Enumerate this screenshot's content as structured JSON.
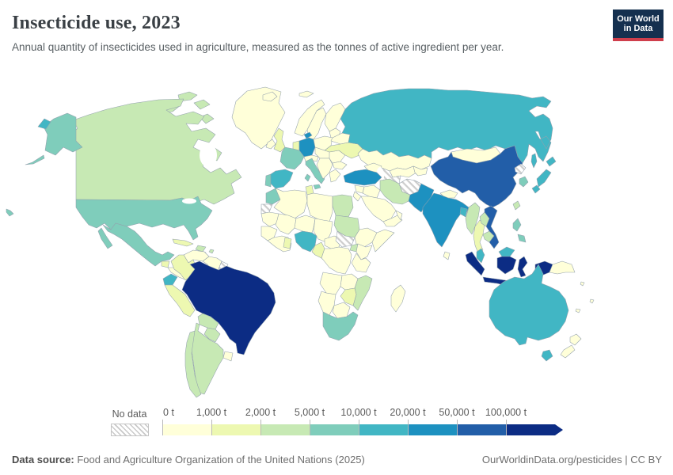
{
  "header": {
    "title": "Insecticide use, 2023",
    "subtitle": "Annual quantity of insecticides used in agriculture, measured as the tonnes of active ingredient per year.",
    "logo_line1": "Our World",
    "logo_line2": "in Data",
    "logo_bg": "#15304f",
    "logo_accent": "#cf3e4c"
  },
  "legend": {
    "no_data_label": "No data",
    "tick_labels": [
      "0 t",
      "1,000 t",
      "2,000 t",
      "5,000 t",
      "10,000 t",
      "20,000 t",
      "50,000 t",
      "100,000 t"
    ],
    "bin_colors": [
      "#ffffd9",
      "#edf8b1",
      "#c7e9b4",
      "#7fcdbb",
      "#41b6c4",
      "#1d91c0",
      "#225ea8",
      "#0c2c84"
    ]
  },
  "footer": {
    "source_label": "Data source:",
    "source_text": " Food and Agriculture Organization of the United Nations (2025)",
    "link_text": "OurWorldinData.org/pesticides",
    "license_sep": " | ",
    "license": "CC BY"
  },
  "chart_data": {
    "type": "choropleth_map",
    "title": "Insecticide use, 2023",
    "unit": "tonnes of active ingredient per year",
    "bins": [
      "0 – 1,000 t",
      "1,000 – 2,000 t",
      "2,000 – 5,000 t",
      "5,000 – 10,000 t",
      "10,000 – 20,000 t",
      "20,000 – 50,000 t",
      "50,000 – 100,000 t",
      "100,000 t and over"
    ],
    "no_data_bin": "No data",
    "regions": [
      [
        "greenland",
        "Greenland",
        0
      ],
      [
        "iceland",
        "Iceland",
        0
      ],
      [
        "svalbard",
        "Svalbard",
        0
      ],
      [
        "norway",
        "Norway",
        0
      ],
      [
        "sweden",
        "Sweden",
        0
      ],
      [
        "finland",
        "Finland",
        0
      ],
      [
        "baltics",
        "Baltic states",
        0
      ],
      [
        "ireland",
        "Ireland",
        0
      ],
      [
        "uk",
        "United Kingdom",
        1
      ],
      [
        "low-countries",
        "Netherlands & Belgium",
        1
      ],
      [
        "denmark",
        "Denmark",
        5
      ],
      [
        "germany",
        "Germany",
        5
      ],
      [
        "poland",
        "Poland",
        0
      ],
      [
        "czech-hungary",
        "Central Europe",
        0
      ],
      [
        "alps",
        "Switzerland & Austria",
        0
      ],
      [
        "france",
        "France",
        3
      ],
      [
        "iberia",
        "Spain",
        4
      ],
      [
        "portugal",
        "Portugal",
        3
      ],
      [
        "italy",
        "Italy",
        3
      ],
      [
        "balkans",
        "Balkans",
        0
      ],
      [
        "romania",
        "Romania",
        0
      ],
      [
        "bulgaria",
        "Bulgaria",
        0
      ],
      [
        "greece",
        "Greece",
        0
      ],
      [
        "belarus",
        "Belarus",
        0
      ],
      [
        "ukraine",
        "Ukraine",
        1
      ],
      [
        "russia",
        "Russia",
        4
      ],
      [
        "russia-chukotka",
        "Russia (Chukotka)",
        4
      ],
      [
        "sakhalin",
        "Russia (Sakhalin)",
        4
      ],
      [
        "kazakhstan",
        "Kazakhstan",
        0
      ],
      [
        "uzbekistan",
        "Uzbekistan",
        0
      ],
      [
        "turkmenistan",
        "Turkmenistan",
        "nd"
      ],
      [
        "kyrgyzstan",
        "Kyrgyzstan & Tajikistan",
        0
      ],
      [
        "afghanistan",
        "Afghanistan",
        "nd"
      ],
      [
        "pakistan",
        "Pakistan",
        5
      ],
      [
        "caucasus",
        "Caucasus",
        0
      ],
      [
        "turkey",
        "Turkey",
        5
      ],
      [
        "syria",
        "Syria",
        0
      ],
      [
        "iraq",
        "Iraq",
        0
      ],
      [
        "jordan",
        "Jordan & Israel",
        0
      ],
      [
        "iran",
        "Iran",
        2
      ],
      [
        "saudi",
        "Saudi Arabia",
        0
      ],
      [
        "yemen",
        "Yemen",
        0
      ],
      [
        "oman",
        "Oman",
        0
      ],
      [
        "india",
        "India",
        5
      ],
      [
        "sri-lanka",
        "Sri Lanka",
        0
      ],
      [
        "nepal",
        "Nepal",
        0
      ],
      [
        "bangladesh",
        "Bangladesh",
        4
      ],
      [
        "china",
        "China",
        6
      ],
      [
        "mongolia",
        "Mongolia",
        0
      ],
      [
        "myanmar",
        "Myanmar",
        2
      ],
      [
        "thailand",
        "Thailand",
        1
      ],
      [
        "laos",
        "Laos",
        2
      ],
      [
        "cambodia",
        "Cambodia",
        2
      ],
      [
        "vietnam",
        "Vietnam",
        6
      ],
      [
        "malaysia",
        "Malaysia",
        4
      ],
      [
        "indonesia",
        "Indonesia",
        7
      ],
      [
        "png",
        "Papua New Guinea",
        0
      ],
      [
        "philippines",
        "Philippines",
        3
      ],
      [
        "taiwan",
        "Taiwan",
        2
      ],
      [
        "japan",
        "Japan",
        4
      ],
      [
        "south-korea",
        "South Korea",
        3
      ],
      [
        "north-korea",
        "North Korea",
        "nd"
      ],
      [
        "australia",
        "Australia",
        4
      ],
      [
        "tasmania",
        "Australia (Tasmania)",
        4
      ],
      [
        "new-zealand",
        "New Zealand",
        0
      ],
      [
        "pacific-islands",
        "Pacific islands",
        0
      ],
      [
        "canada",
        "Canada",
        2
      ],
      [
        "arctic-islands",
        "Canada (Arctic islands)",
        2
      ],
      [
        "alaska",
        "United States (Alaska)",
        3
      ],
      [
        "hawaii",
        "United States (Hawaii)",
        3
      ],
      [
        "usa",
        "United States",
        3
      ],
      [
        "mexico",
        "Mexico",
        3
      ],
      [
        "baja",
        "Mexico (Baja California)",
        3
      ],
      [
        "guatemala",
        "Guatemala",
        1
      ],
      [
        "central-america",
        "Central America",
        0
      ],
      [
        "cuba",
        "Cuba",
        1
      ],
      [
        "hispaniola",
        "Dominican Republic",
        2
      ],
      [
        "caribbean",
        "Caribbean islands",
        2
      ],
      [
        "venezuela",
        "Venezuela",
        0
      ],
      [
        "colombia",
        "Colombia",
        1
      ],
      [
        "guyanas",
        "Guyana & Suriname",
        0
      ],
      [
        "french-guiana",
        "French Guiana",
        "nd"
      ],
      [
        "ecuador",
        "Ecuador",
        4
      ],
      [
        "peru",
        "Peru",
        1
      ],
      [
        "brazil",
        "Brazil",
        7
      ],
      [
        "bolivia",
        "Bolivia",
        2
      ],
      [
        "paraguay",
        "Paraguay",
        2
      ],
      [
        "uruguay",
        "Uruguay",
        0
      ],
      [
        "argentina",
        "Argentina",
        2
      ],
      [
        "chile",
        "Chile",
        2
      ],
      [
        "morocco",
        "Morocco",
        3
      ],
      [
        "western-sahara",
        "Western Sahara",
        "nd"
      ],
      [
        "algeria",
        "Algeria",
        0
      ],
      [
        "tunisia",
        "Tunisia",
        1
      ],
      [
        "libya",
        "Libya",
        0
      ],
      [
        "egypt",
        "Egypt",
        2
      ],
      [
        "mauritania",
        "Mauritania",
        0
      ],
      [
        "mali",
        "Mali",
        0
      ],
      [
        "niger",
        "Niger",
        0
      ],
      [
        "chad",
        "Chad",
        0
      ],
      [
        "senegal",
        "Senegal & Guinea",
        0
      ],
      [
        "west-africa",
        "West African coast",
        0
      ],
      [
        "ghana",
        "Ghana",
        1
      ],
      [
        "nigeria",
        "Nigeria",
        4
      ],
      [
        "cameroon",
        "Cameroon",
        1
      ],
      [
        "car",
        "Central African Republic",
        0
      ],
      [
        "sudan",
        "Sudan",
        2
      ],
      [
        "south-sudan",
        "South Sudan",
        "nd"
      ],
      [
        "ethiopia",
        "Ethiopia",
        0
      ],
      [
        "somalia",
        "Somalia",
        0
      ],
      [
        "drc",
        "Democratic Republic of Congo",
        0
      ],
      [
        "uganda",
        "Uganda",
        2
      ],
      [
        "kenya",
        "Kenya",
        0
      ],
      [
        "tanzania",
        "Tanzania",
        0
      ],
      [
        "angola",
        "Angola",
        0
      ],
      [
        "zambia",
        "Zambia",
        0
      ],
      [
        "mozambique",
        "Mozambique",
        2
      ],
      [
        "zimbabwe",
        "Zimbabwe",
        1
      ],
      [
        "namibia",
        "Namibia",
        0
      ],
      [
        "botswana",
        "Botswana",
        0
      ],
      [
        "south-africa",
        "South Africa",
        3
      ],
      [
        "madagascar",
        "Madagascar",
        0
      ]
    ]
  }
}
